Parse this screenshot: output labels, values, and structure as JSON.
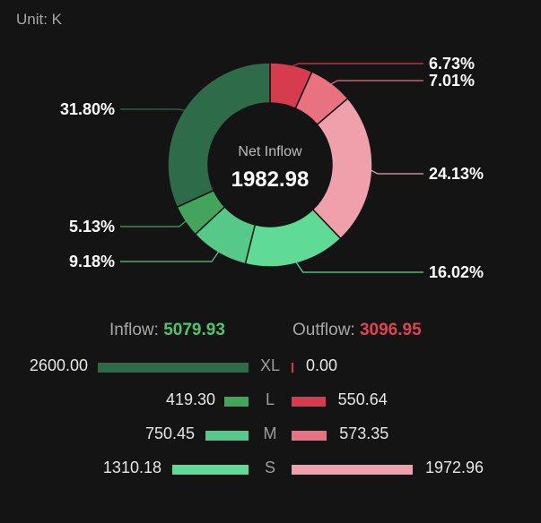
{
  "unit_label": "Unit: K",
  "center": {
    "title": "Net Inflow",
    "value": "1982.98"
  },
  "chart_data": {
    "type": "pie",
    "slices": [
      {
        "label": "6.73%",
        "value": 6.73,
        "color": "#d63c4e"
      },
      {
        "label": "7.01%",
        "value": 7.01,
        "color": "#e8727f"
      },
      {
        "label": "24.13%",
        "value": 24.13,
        "color": "#f0a0aa"
      },
      {
        "label": "16.02%",
        "value": 16.02,
        "color": "#5fdb96"
      },
      {
        "label": "9.18%",
        "value": 9.18,
        "color": "#56c888"
      },
      {
        "label": "5.13%",
        "value": 5.13,
        "color": "#43a55c"
      },
      {
        "label": "31.80%",
        "value": 31.8,
        "color": "#2e6b48"
      }
    ]
  },
  "totals": {
    "inflow_label": "Inflow:",
    "inflow_value": "5079.93",
    "outflow_label": "Outflow:",
    "outflow_value": "3096.95",
    "inflow_color": "#4cc66e",
    "outflow_color": "#e2424f"
  },
  "rows": [
    {
      "category": "XL",
      "inflow": "2600.00",
      "inflow_value": 2600.0,
      "outflow": "0.00",
      "outflow_value": 0.0,
      "inflow_color": "#2e6b48",
      "outflow_color": "#d63c4e"
    },
    {
      "category": "L",
      "inflow": "419.30",
      "inflow_value": 419.3,
      "outflow": "550.64",
      "outflow_value": 550.64,
      "inflow_color": "#43a55c",
      "outflow_color": "#d63c4e"
    },
    {
      "category": "M",
      "inflow": "750.45",
      "inflow_value": 750.45,
      "outflow": "573.35",
      "outflow_value": 573.35,
      "inflow_color": "#56c888",
      "outflow_color": "#e8727f"
    },
    {
      "category": "S",
      "inflow": "1310.18",
      "inflow_value": 1310.18,
      "outflow": "1972.96",
      "outflow_value": 1972.96,
      "inflow_color": "#5fdb96",
      "outflow_color": "#f0a0aa"
    }
  ]
}
